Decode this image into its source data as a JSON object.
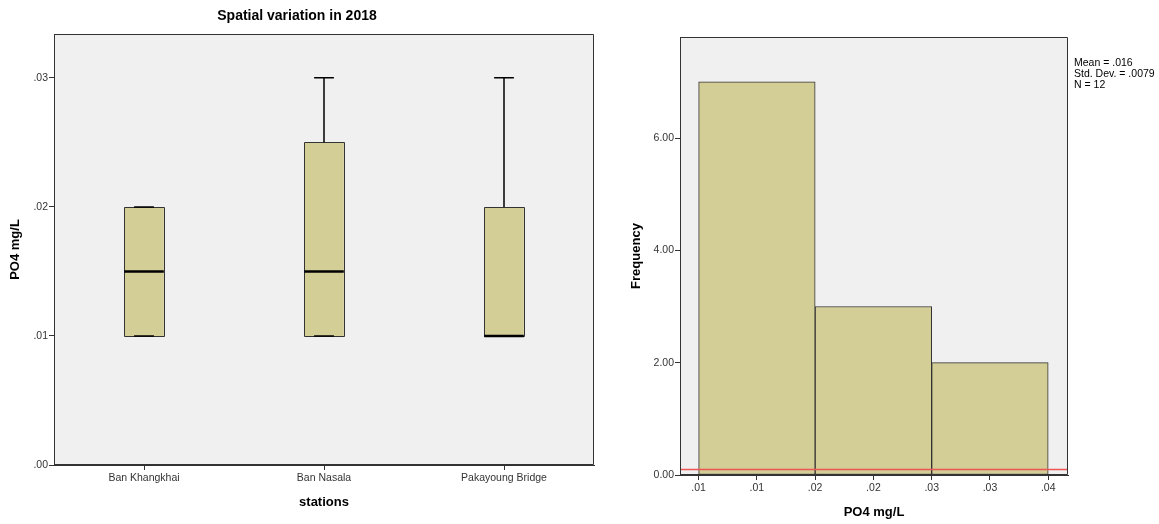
{
  "chart_data": [
    {
      "type": "box",
      "title": "Spatial variation in 2018",
      "xlabel": "stations",
      "ylabel": "PO4 mg/L",
      "categories": [
        "Ban Khangkhai",
        "Ban Nasala",
        "Pakayoung Bridge"
      ],
      "boxes": [
        {
          "low": 0.01,
          "q1": 0.01,
          "median": 0.015,
          "q3": 0.02,
          "high": 0.02
        },
        {
          "low": 0.01,
          "q1": 0.01,
          "median": 0.015,
          "q3": 0.025,
          "high": 0.03
        },
        {
          "low": 0.01,
          "q1": 0.01,
          "median": 0.01,
          "q3": 0.02,
          "high": 0.03
        }
      ],
      "color": "#d3cd96",
      "ylim": [
        0,
        0.0334
      ],
      "yticks": [
        {
          "value": 0,
          "label": ".00"
        },
        {
          "value": 0.01,
          "label": ".01"
        },
        {
          "value": 0.02,
          "label": ".02"
        },
        {
          "value": 0.03,
          "label": ".03"
        }
      ]
    },
    {
      "type": "histogram",
      "xlabel": "PO4 mg/L",
      "ylabel": "Frequency",
      "bins": [
        0.01,
        0.02,
        0.03,
        0.04
      ],
      "values": [
        7,
        3,
        2
      ],
      "color": "#d3cd96",
      "xlim": [
        0.0084,
        0.0417
      ],
      "xticks": [
        {
          "value": 0.01,
          "label": ".01"
        },
        {
          "value": 0.015,
          "label": ".01"
        },
        {
          "value": 0.02,
          "label": ".02"
        },
        {
          "value": 0.025,
          "label": ".02"
        },
        {
          "value": 0.03,
          "label": ".03"
        },
        {
          "value": 0.035,
          "label": ".03"
        },
        {
          "value": 0.04,
          "label": ".04"
        }
      ],
      "ylim": [
        0,
        7.8
      ],
      "yticks": [
        {
          "value": 0,
          "label": "0.00"
        },
        {
          "value": 2,
          "label": "2.00"
        },
        {
          "value": 4,
          "label": "4.00"
        },
        {
          "value": 6,
          "label": "6.00"
        }
      ],
      "ref_lines": [
        {
          "axis": "y",
          "value": 0.1,
          "color": "#ee5555"
        }
      ],
      "annotations": [
        "Mean = .016",
        "Std. Dev. = .0079",
        "N = 12"
      ]
    }
  ]
}
